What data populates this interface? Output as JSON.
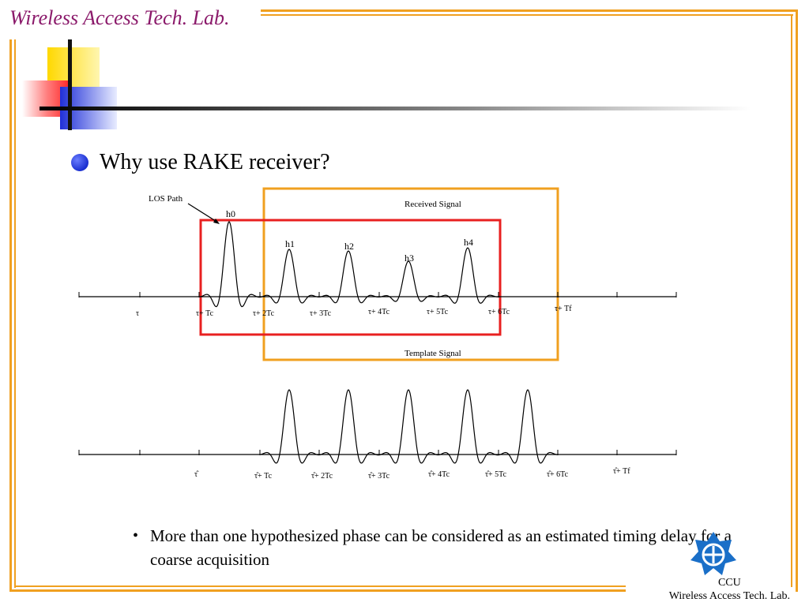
{
  "header": {
    "lab_title": "Wireless Access Tech. Lab."
  },
  "heading": "Why use RAKE receiver?",
  "figure": {
    "los_label": "LOS Path",
    "received_label": "Received Signal",
    "template_label": "Template Signal",
    "peak_labels": [
      "h0",
      "h1",
      "h2",
      "h3",
      "h4"
    ],
    "top_ticks": [
      "τ",
      "τ+ Tc",
      "τ+ 2Tc",
      "τ+ 3Tc",
      "τ+ 4Tc",
      "τ+ 5Tc",
      "τ+ 6Tc",
      "τ+ Tf"
    ],
    "bottom_ticks": [
      "τ̂",
      "τ̂+ Tc",
      "τ̂+ 2Tc",
      "τ̂+ 3Tc",
      "τ̂+ 4Tc",
      "τ̂+ 5Tc",
      "τ̂+ 6Tc",
      "τ̂+ Tf"
    ],
    "colors": {
      "received_box": "#f0a020",
      "template_box": "#e82020"
    }
  },
  "bullet": "More than one hypothesized phase can be considered as an estimated timing delay for a coarse acquisition",
  "footer": {
    "line1": "CCU",
    "line2": "Wireless Access Tech. Lab."
  }
}
